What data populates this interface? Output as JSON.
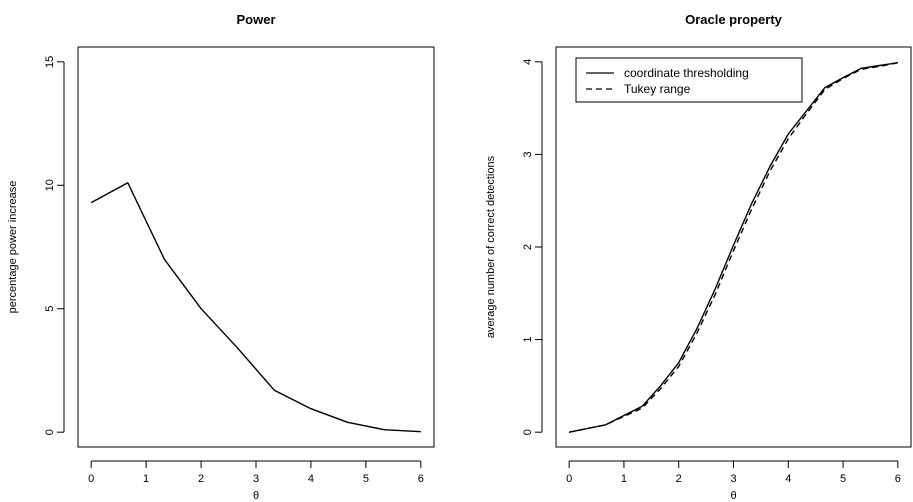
{
  "chart_data": [
    {
      "type": "line",
      "title": "Power",
      "xlabel": "θ",
      "ylabel": "percentage power increase",
      "xlim": [
        -0.24,
        6.24
      ],
      "ylim": [
        -0.6,
        15.6
      ],
      "xticks": [
        "0",
        "1",
        "2",
        "3",
        "4",
        "5",
        "6"
      ],
      "yticks": [
        "0",
        "5",
        "10",
        "15"
      ],
      "grid": false,
      "series": [
        {
          "style": "solid",
          "x": [
            0,
            0.667,
            1.333,
            2.0,
            2.667,
            3.333,
            4.0,
            4.667,
            5.333,
            6.0
          ],
          "y": [
            9.3,
            10.1,
            7.0,
            5.0,
            3.4,
            1.7,
            0.95,
            0.4,
            0.1,
            0.02
          ]
        }
      ]
    },
    {
      "type": "line",
      "title": "Oracle property",
      "xlabel": "θ",
      "ylabel": "average number of correct detections",
      "xlim": [
        -0.24,
        6.24
      ],
      "ylim": [
        -0.16,
        4.16
      ],
      "xticks": [
        "0",
        "1",
        "2",
        "3",
        "4",
        "5",
        "6"
      ],
      "yticks": [
        "0",
        "1",
        "2",
        "3",
        "4"
      ],
      "grid": false,
      "legend_position": "top-left",
      "series": [
        {
          "name": "coordinate thresholding",
          "style": "solid",
          "x": [
            0,
            0.333,
            0.667,
            1.0,
            1.333,
            1.667,
            2.0,
            2.333,
            2.667,
            3.0,
            3.333,
            3.667,
            4.0,
            4.333,
            4.667,
            5.0,
            5.333,
            5.667,
            6.0
          ],
          "y": [
            0.0,
            0.04,
            0.08,
            0.18,
            0.28,
            0.5,
            0.75,
            1.12,
            1.55,
            2.02,
            2.47,
            2.87,
            3.22,
            3.47,
            3.72,
            3.83,
            3.93,
            3.96,
            3.99
          ]
        },
        {
          "name": "Tukey range",
          "style": "dashed",
          "x": [
            0,
            0.333,
            0.667,
            1.0,
            1.333,
            1.667,
            2.0,
            2.333,
            2.667,
            3.0,
            3.333,
            3.667,
            4.0,
            4.333,
            4.667,
            5.0,
            5.333,
            5.667,
            6.0
          ],
          "y": [
            0.0,
            0.04,
            0.08,
            0.17,
            0.26,
            0.47,
            0.71,
            1.07,
            1.49,
            1.96,
            2.41,
            2.82,
            3.17,
            3.44,
            3.7,
            3.82,
            3.92,
            3.95,
            3.99
          ]
        }
      ]
    }
  ]
}
